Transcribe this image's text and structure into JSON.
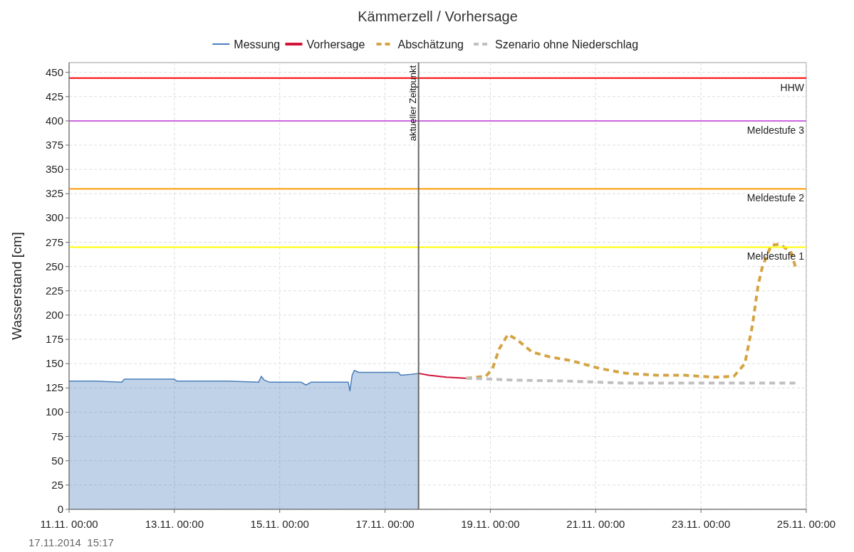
{
  "chart_data": {
    "type": "line",
    "title": "Kämmerzell / Vorhersage",
    "ylabel": "Wasserstand [cm]",
    "xlim": [
      "2014-11-11T00:00",
      "2014-11-25T00:00"
    ],
    "xticks": [
      {
        "value": "2014-11-11T00:00",
        "label": "11.11. 00:00"
      },
      {
        "value": "2014-11-13T00:00",
        "label": "13.11. 00:00"
      },
      {
        "value": "2014-11-15T00:00",
        "label": "15.11. 00:00"
      },
      {
        "value": "2014-11-17T00:00",
        "label": "17.11. 00:00"
      },
      {
        "value": "2014-11-19T00:00",
        "label": "19.11. 00:00"
      },
      {
        "value": "2014-11-21T00:00",
        "label": "21.11. 00:00"
      },
      {
        "value": "2014-11-23T00:00",
        "label": "23.11. 00:00"
      },
      {
        "value": "2014-11-25T00:00",
        "label": "25.11. 00:00"
      }
    ],
    "ylim": [
      0,
      460
    ],
    "yticks": [
      0,
      25,
      50,
      75,
      100,
      125,
      150,
      175,
      200,
      225,
      250,
      275,
      300,
      325,
      350,
      375,
      400,
      425,
      450
    ],
    "grid": true,
    "legend": "top",
    "series": [
      {
        "name": "Messung",
        "type": "area",
        "color": "#4a7ebb",
        "line_style": "solid",
        "x": [
          "2014-11-11T00:00",
          "2014-11-11T12:00",
          "2014-11-12T00:00",
          "2014-11-12T01:12",
          "2014-11-13T00:00",
          "2014-11-13T01:12",
          "2014-11-14T00:00",
          "2014-11-14T14:24",
          "2014-11-14T15:36",
          "2014-11-14T17:00",
          "2014-11-14T19:12",
          "2014-11-15T09:36",
          "2014-11-15T12:00",
          "2014-11-15T14:24",
          "2014-11-16T07:12",
          "2014-11-16T08:00",
          "2014-11-16T09:00",
          "2014-11-16T10:00",
          "2014-11-16T12:00",
          "2014-11-17T06:00",
          "2014-11-17T07:12",
          "2014-11-17T12:00",
          "2014-11-17T15:17"
        ],
        "values": [
          132,
          132,
          131,
          134,
          134,
          132,
          132,
          131,
          137,
          133,
          131,
          131,
          128,
          131,
          131,
          122,
          138,
          143,
          141,
          141,
          138,
          139,
          140
        ]
      },
      {
        "name": "Vorhersage",
        "color": "#d2143a",
        "line_style": "solid",
        "x": [
          "2014-11-17T15:17",
          "2014-11-17T20:00",
          "2014-11-18T04:00",
          "2014-11-18T13:00"
        ],
        "values": [
          140,
          138,
          136,
          135
        ]
      },
      {
        "name": "Abschätzung",
        "color": "#d4a444",
        "line_style": "dashed",
        "x": [
          "2014-11-18T13:00",
          "2014-11-18T22:00",
          "2014-11-19T01:00",
          "2014-11-19T04:00",
          "2014-11-19T08:00",
          "2014-11-19T12:00",
          "2014-11-19T19:00",
          "2014-11-20T03:00",
          "2014-11-20T13:00",
          "2014-11-21T02:00",
          "2014-11-21T14:00",
          "2014-11-22T04:00",
          "2014-11-22T17:00",
          "2014-11-23T06:00",
          "2014-11-23T15:00",
          "2014-11-23T20:00",
          "2014-11-23T23:30",
          "2014-11-24T02:00",
          "2014-11-24T04:00",
          "2014-11-24T08:00",
          "2014-11-24T12:00",
          "2014-11-24T17:00",
          "2014-11-24T19:00"
        ],
        "values": [
          135,
          137,
          145,
          165,
          180,
          175,
          162,
          157,
          153,
          145,
          140,
          138,
          138,
          136,
          137,
          150,
          190,
          230,
          250,
          272,
          273,
          265,
          250
        ]
      },
      {
        "name": "Szenario ohne Niederschlag",
        "color": "#c0c0c0",
        "line_style": "dashed",
        "x": [
          "2014-11-18T13:00",
          "2014-11-19T12:00",
          "2014-11-20T12:00",
          "2014-11-21T12:00",
          "2014-11-22T12:00",
          "2014-11-24T19:00"
        ],
        "values": [
          135,
          133,
          132,
          130,
          130,
          130
        ]
      }
    ],
    "ref_lines": [
      {
        "axis": "y",
        "value": 444,
        "label": "HHW",
        "color": "#ff0000"
      },
      {
        "axis": "y",
        "value": 400,
        "label": "Meldestufe 3",
        "color": "#cc66dd"
      },
      {
        "axis": "y",
        "value": 330,
        "label": "Meldestufe 2",
        "color": "#ff9900"
      },
      {
        "axis": "y",
        "value": 270,
        "label": "Meldestufe 1",
        "color": "#ffff00"
      },
      {
        "axis": "x",
        "value": "2014-11-17T15:17",
        "label": "aktueller Zeitpunkt",
        "color": "#666666"
      }
    ],
    "annotations": [
      "17.11.2014  15:17"
    ]
  }
}
